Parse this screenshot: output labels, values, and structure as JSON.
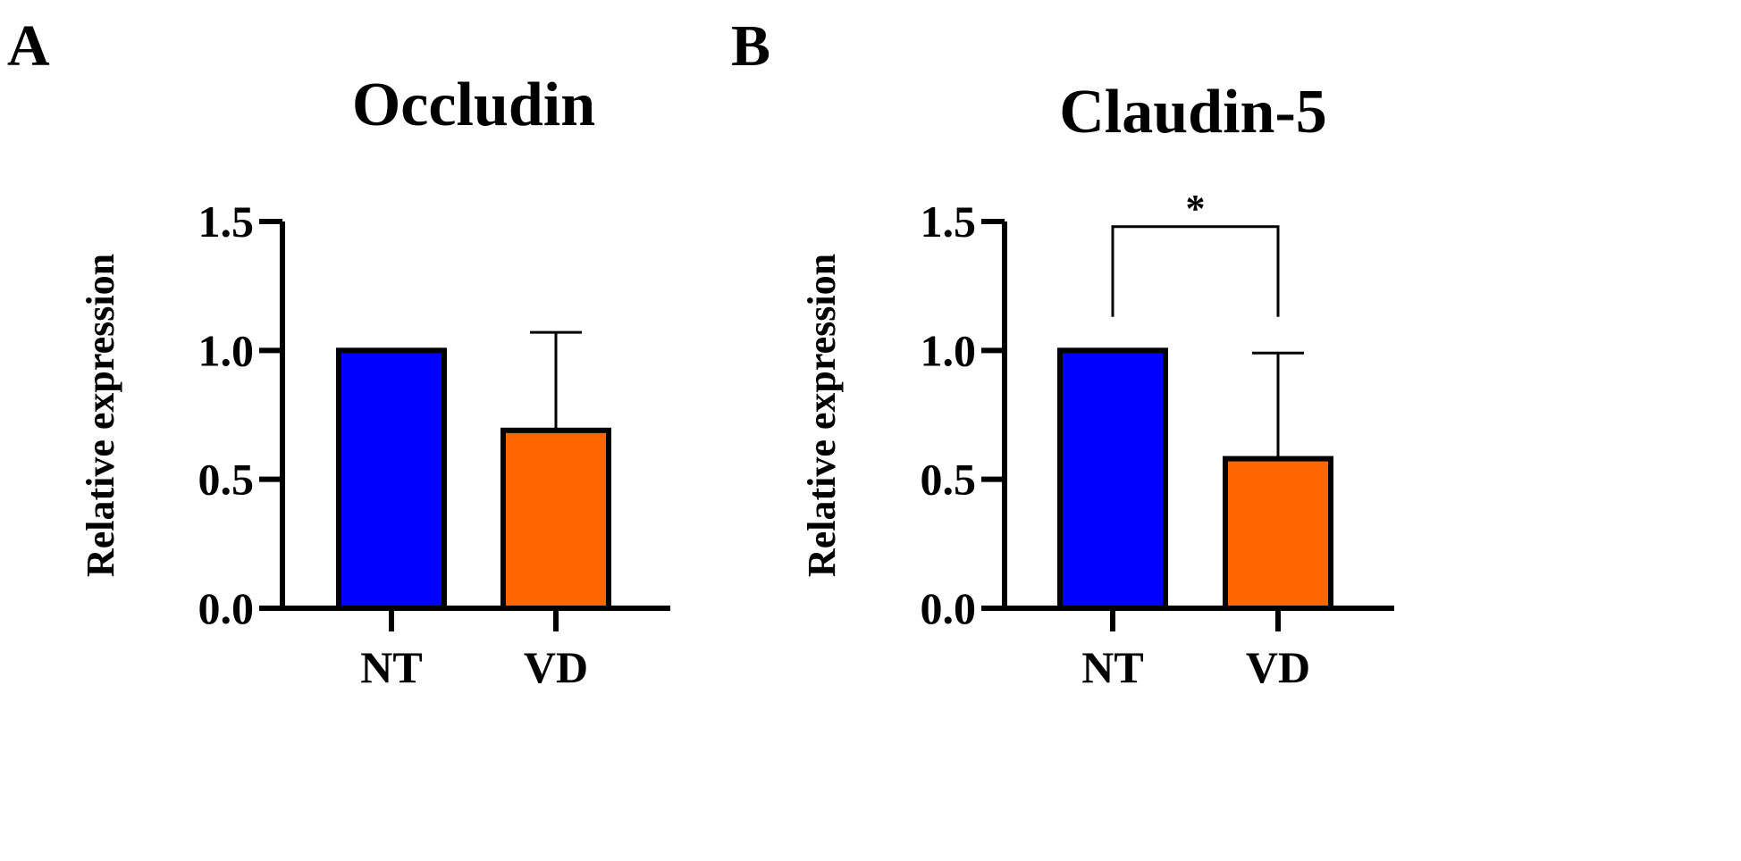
{
  "panels": [
    {
      "letter": "A",
      "chart_data": {
        "type": "bar",
        "title": "Occludin",
        "xlabel": "",
        "ylabel": "Relative expression",
        "categories": [
          "NT",
          "VD"
        ],
        "values": [
          1.0,
          0.69
        ],
        "error_upper": [
          0.0,
          0.38
        ],
        "colors": [
          "#0000ff",
          "#ff6600"
        ],
        "ylim": [
          0,
          1.5
        ],
        "yticks": [
          0.0,
          0.5,
          1.0,
          1.5
        ],
        "ytick_labels": [
          "0.0",
          "0.5",
          "1.0",
          "1.5"
        ],
        "grid": false,
        "significance": []
      }
    },
    {
      "letter": "B",
      "chart_data": {
        "type": "bar",
        "title": "Claudin-5",
        "xlabel": "",
        "ylabel": "Relative expression",
        "categories": [
          "NT",
          "VD"
        ],
        "values": [
          1.0,
          0.58
        ],
        "error_upper": [
          0.0,
          0.41
        ],
        "colors": [
          "#0000ff",
          "#ff6600"
        ],
        "ylim": [
          0,
          1.5
        ],
        "yticks": [
          0.0,
          0.5,
          1.0,
          1.5
        ],
        "ytick_labels": [
          "0.0",
          "0.5",
          "1.0",
          "1.5"
        ],
        "grid": false,
        "significance": [
          {
            "from": 0,
            "to": 1,
            "label": "*",
            "level": 1.48,
            "drop_from": 1.13,
            "drop_to": 1.13
          }
        ]
      }
    }
  ]
}
